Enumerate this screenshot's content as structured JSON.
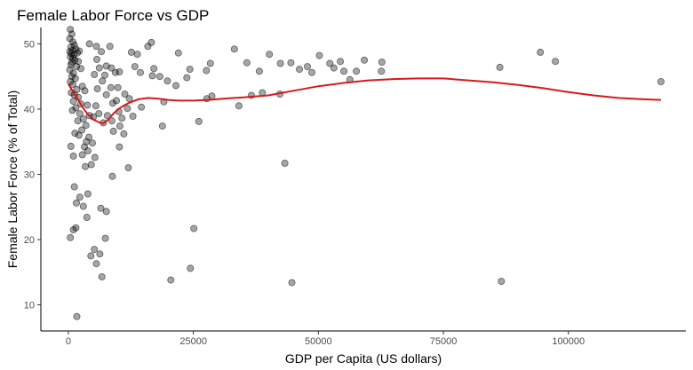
{
  "chart_data": {
    "type": "scatter",
    "title": "Female Labor Force vs GDP",
    "xlabel": "GDP per Capita (US dollars)",
    "ylabel": "Female Labor Force (% of Total)",
    "xlim": [
      -5500,
      123500
    ],
    "ylim": [
      6,
      52.5
    ],
    "x_ticks": [
      0,
      25000,
      50000,
      75000,
      100000
    ],
    "x_tick_labels": [
      "0",
      "25000",
      "50000",
      "75000",
      "100000"
    ],
    "y_ticks": [
      10,
      20,
      30,
      40,
      50
    ],
    "y_tick_labels": [
      "10",
      "20",
      "30",
      "40",
      "50"
    ],
    "grid": false,
    "smooth_color": "#d7191c",
    "points": [
      [
        400,
        52.2
      ],
      [
        700,
        51.5
      ],
      [
        300,
        50.8
      ],
      [
        900,
        50.3
      ],
      [
        1200,
        49.8
      ],
      [
        500,
        49.5
      ],
      [
        800,
        49.0
      ],
      [
        1500,
        49.2
      ],
      [
        300,
        48.8
      ],
      [
        600,
        48.5
      ],
      [
        1100,
        48.3
      ],
      [
        1800,
        48.6
      ],
      [
        2200,
        48.9
      ],
      [
        400,
        48.0
      ],
      [
        900,
        47.8
      ],
      [
        1300,
        47.5
      ],
      [
        700,
        47.2
      ],
      [
        2000,
        47.3
      ],
      [
        500,
        46.8
      ],
      [
        1600,
        46.5
      ],
      [
        300,
        46.0
      ],
      [
        1000,
        45.5
      ],
      [
        2500,
        46.2
      ],
      [
        700,
        45.0
      ],
      [
        1400,
        44.7
      ],
      [
        400,
        44.2
      ],
      [
        900,
        43.8
      ],
      [
        2800,
        43.5
      ],
      [
        1700,
        43.0
      ],
      [
        600,
        42.5
      ],
      [
        1200,
        42.2
      ],
      [
        3300,
        42.8
      ],
      [
        2000,
        41.8
      ],
      [
        1000,
        41.2
      ],
      [
        2500,
        40.8
      ],
      [
        1500,
        40.2
      ],
      [
        3800,
        40.6
      ],
      [
        800,
        39.8
      ],
      [
        2300,
        39.3
      ],
      [
        4200,
        39.0
      ],
      [
        3000,
        38.5
      ],
      [
        1900,
        38.2
      ],
      [
        5000,
        38.8
      ],
      [
        3500,
        37.5
      ],
      [
        2700,
        36.8
      ],
      [
        1300,
        36.3
      ],
      [
        2100,
        36.0
      ],
      [
        4100,
        35.7
      ],
      [
        3600,
        35.0
      ],
      [
        4800,
        34.8
      ],
      [
        3200,
        34.2
      ],
      [
        500,
        34.3
      ],
      [
        3900,
        33.6
      ],
      [
        2800,
        33.0
      ],
      [
        1000,
        32.8
      ],
      [
        5300,
        32.6
      ],
      [
        4600,
        31.5
      ],
      [
        3400,
        31.2
      ],
      [
        1200,
        28.1
      ],
      [
        3900,
        27.0
      ],
      [
        2300,
        26.5
      ],
      [
        1600,
        25.6
      ],
      [
        3000,
        25.1
      ],
      [
        6500,
        24.8
      ],
      [
        7600,
        24.3
      ],
      [
        3700,
        23.4
      ],
      [
        1500,
        21.8
      ],
      [
        1000,
        21.5
      ],
      [
        400,
        20.3
      ],
      [
        5200,
        18.5
      ],
      [
        6300,
        17.8
      ],
      [
        4500,
        17.5
      ],
      [
        5600,
        16.3
      ],
      [
        6700,
        14.3
      ],
      [
        1700,
        8.2
      ],
      [
        4200,
        50.0
      ],
      [
        5600,
        49.6
      ],
      [
        5700,
        47.6
      ],
      [
        6600,
        48.8
      ],
      [
        8300,
        49.6
      ],
      [
        7600,
        46.6
      ],
      [
        8600,
        46.3
      ],
      [
        6200,
        46.3
      ],
      [
        5200,
        45.3
      ],
      [
        7300,
        45.2
      ],
      [
        9400,
        45.6
      ],
      [
        6800,
        44.3
      ],
      [
        5800,
        43.1
      ],
      [
        8500,
        43.3
      ],
      [
        10200,
        45.7
      ],
      [
        9900,
        43.3
      ],
      [
        11300,
        42.3
      ],
      [
        7600,
        42.2
      ],
      [
        9600,
        41.3
      ],
      [
        12200,
        41.6
      ],
      [
        5500,
        40.5
      ],
      [
        8900,
        40.9
      ],
      [
        10100,
        39.6
      ],
      [
        11800,
        40.1
      ],
      [
        6100,
        39.3
      ],
      [
        7800,
        39.0
      ],
      [
        10700,
        38.6
      ],
      [
        12900,
        38.9
      ],
      [
        7000,
        37.9
      ],
      [
        8700,
        38.2
      ],
      [
        10300,
        37.4
      ],
      [
        9000,
        36.6
      ],
      [
        11100,
        36.2
      ],
      [
        10200,
        34.2
      ],
      [
        12000,
        31.0
      ],
      [
        8800,
        29.7
      ],
      [
        7400,
        20.2
      ],
      [
        12600,
        48.7
      ],
      [
        13800,
        48.4
      ],
      [
        15900,
        49.6
      ],
      [
        16600,
        50.2
      ],
      [
        13300,
        46.5
      ],
      [
        14400,
        45.6
      ],
      [
        16800,
        45.1
      ],
      [
        18300,
        45.0
      ],
      [
        17100,
        46.2
      ],
      [
        19800,
        44.3
      ],
      [
        22000,
        48.6
      ],
      [
        23700,
        44.8
      ],
      [
        21500,
        43.6
      ],
      [
        19100,
        41.1
      ],
      [
        14600,
        40.3
      ],
      [
        18800,
        37.4
      ],
      [
        26100,
        38.1
      ],
      [
        24300,
        46.1
      ],
      [
        27600,
        45.9
      ],
      [
        28400,
        47.0
      ],
      [
        28700,
        42.0
      ],
      [
        27700,
        41.6
      ],
      [
        20500,
        13.8
      ],
      [
        24400,
        15.6
      ],
      [
        25100,
        21.7
      ],
      [
        33200,
        49.2
      ],
      [
        35700,
        47.1
      ],
      [
        38200,
        45.8
      ],
      [
        40200,
        48.4
      ],
      [
        42400,
        47.0
      ],
      [
        44500,
        47.1
      ],
      [
        46200,
        46.1
      ],
      [
        47800,
        46.5
      ],
      [
        48700,
        45.6
      ],
      [
        50200,
        48.2
      ],
      [
        52300,
        47.0
      ],
      [
        53100,
        46.3
      ],
      [
        54400,
        47.3
      ],
      [
        55100,
        45.8
      ],
      [
        56300,
        44.5
      ],
      [
        57600,
        45.8
      ],
      [
        59200,
        47.5
      ],
      [
        62700,
        47.2
      ],
      [
        62600,
        45.8
      ],
      [
        34100,
        40.5
      ],
      [
        36600,
        42.1
      ],
      [
        38800,
        42.5
      ],
      [
        42300,
        42.3
      ],
      [
        43300,
        31.7
      ],
      [
        44700,
        13.4
      ],
      [
        86300,
        46.4
      ],
      [
        86600,
        13.6
      ],
      [
        94400,
        48.7
      ],
      [
        97400,
        47.3
      ],
      [
        118500,
        44.2
      ]
    ],
    "smooth": [
      [
        0,
        43.8
      ],
      [
        1000,
        42.6
      ],
      [
        2000,
        41.4
      ],
      [
        3000,
        40.1
      ],
      [
        4000,
        39.1
      ],
      [
        5000,
        38.4
      ],
      [
        6000,
        38.0
      ],
      [
        7000,
        37.8
      ],
      [
        8000,
        38.4
      ],
      [
        9000,
        39.3
      ],
      [
        10000,
        40.0
      ],
      [
        11000,
        40.5
      ],
      [
        12000,
        40.9
      ],
      [
        13000,
        41.2
      ],
      [
        14000,
        41.5
      ],
      [
        16000,
        41.7
      ],
      [
        18000,
        41.6
      ],
      [
        20000,
        41.4
      ],
      [
        22000,
        41.3
      ],
      [
        25000,
        41.3
      ],
      [
        28000,
        41.4
      ],
      [
        31000,
        41.6
      ],
      [
        35000,
        41.8
      ],
      [
        40000,
        42.1
      ],
      [
        45000,
        42.8
      ],
      [
        50000,
        43.5
      ],
      [
        55000,
        44.0
      ],
      [
        60000,
        44.4
      ],
      [
        65000,
        44.6
      ],
      [
        70000,
        44.7
      ],
      [
        75000,
        44.7
      ],
      [
        80000,
        44.4
      ],
      [
        85000,
        44.1
      ],
      [
        90000,
        43.7
      ],
      [
        95000,
        43.2
      ],
      [
        100000,
        42.6
      ],
      [
        105000,
        42.1
      ],
      [
        110000,
        41.7
      ],
      [
        115000,
        41.5
      ],
      [
        118500,
        41.4
      ]
    ]
  }
}
